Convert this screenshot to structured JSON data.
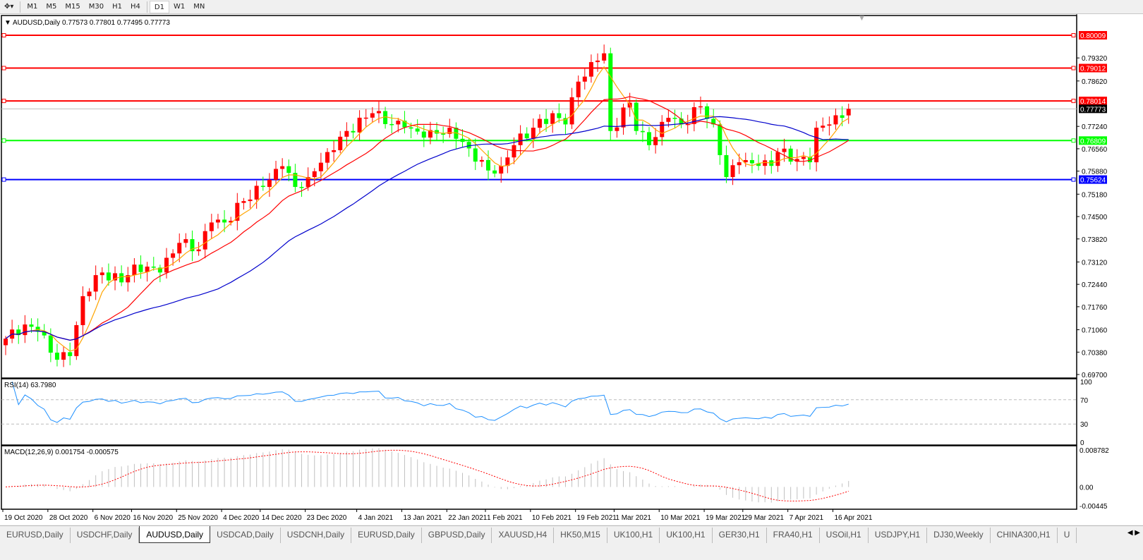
{
  "toolbar": {
    "timeframes": [
      {
        "label": "M1"
      },
      {
        "label": "M5"
      },
      {
        "label": "M15"
      },
      {
        "label": "M30"
      },
      {
        "label": "H1"
      },
      {
        "label": "H4"
      },
      {
        "label": "D1",
        "active": true
      },
      {
        "label": "W1"
      },
      {
        "label": "MN"
      }
    ]
  },
  "chart": {
    "header": "AUDUSD,Daily  0.77573 0.77801 0.77495 0.77773",
    "current_price": "0.77773",
    "colors": {
      "bull": "#ff0000",
      "bear": "#00ff00",
      "ma_fast": "#ffa500",
      "ma_mid": "#ff0000",
      "ma_slow": "#0000cc",
      "rsi": "#1e90ff",
      "macd_hist": "#c0c0c0",
      "macd_signal": "#ff0000",
      "bid_line": "#c0c0c0"
    },
    "price_axis": [
      "0.79320",
      "0.78620",
      "0.77240",
      "0.76560",
      "0.75880",
      "0.75180",
      "0.74500",
      "0.73820",
      "0.73120",
      "0.72440",
      "0.71760",
      "0.71060",
      "0.70380",
      "0.69700"
    ],
    "price_range": [
      0.697,
      0.80009
    ],
    "levels": [
      {
        "price": "0.80009",
        "color": "#ff0000"
      },
      {
        "price": "0.79012",
        "color": "#ff0000"
      },
      {
        "price": "0.78014",
        "color": "#ff0000"
      },
      {
        "price": "0.76809",
        "color": "#00ff00"
      },
      {
        "price": "0.75624",
        "color": "#0000ff"
      }
    ],
    "date_labels": [
      "19 Oct 2020",
      "28 Oct 2020",
      "6 Nov 2020",
      "16 Nov 2020",
      "25 Nov 2020",
      "4 Dec 2020",
      "14 Dec 2020",
      "23 Dec 2020",
      "4 Jan 2021",
      "13 Jan 2021",
      "22 Jan 2021",
      "1 Feb 2021",
      "10 Feb 2021",
      "19 Feb 2021",
      "1 Mar 2021",
      "10 Mar 2021",
      "19 Mar 2021",
      "29 Mar 2021",
      "7 Apr 2021",
      "16 Apr 2021"
    ]
  },
  "rsi": {
    "label": "RSI(14) 63.7980",
    "axis": [
      "100",
      "70",
      "30",
      "0"
    ],
    "levels": [
      70,
      30
    ]
  },
  "macd": {
    "label": "MACD(12,26,9) 0.001754 -0.000575",
    "axis": [
      "0.008782",
      "0.00",
      "-0.00445"
    ],
    "range": [
      -0.00445,
      0.008782
    ]
  },
  "chart_data": {
    "type": "candlestick",
    "symbol": "AUDUSD",
    "timeframe": "Daily",
    "last_ohlc": {
      "open": 0.77573,
      "high": 0.77801,
      "low": 0.77495,
      "close": 0.77773
    },
    "approx_close_pivots": [
      [
        "2020-10-19",
        0.7079
      ],
      [
        "2020-10-22",
        0.7122
      ],
      [
        "2020-10-26",
        0.71
      ],
      [
        "2020-10-29",
        0.7015
      ],
      [
        "2020-11-02",
        0.7026
      ],
      [
        "2020-11-04",
        0.7208
      ],
      [
        "2020-11-06",
        0.7272
      ],
      [
        "2020-11-09",
        0.728
      ],
      [
        "2020-11-12",
        0.725
      ],
      [
        "2020-11-16",
        0.7304
      ],
      [
        "2020-11-20",
        0.728
      ],
      [
        "2020-11-25",
        0.737
      ],
      [
        "2020-11-30",
        0.735
      ],
      [
        "2020-12-02",
        0.7432
      ],
      [
        "2020-12-04",
        0.7432
      ],
      [
        "2020-12-09",
        0.7497
      ],
      [
        "2020-12-14",
        0.754
      ],
      [
        "2020-12-17",
        0.7603
      ],
      [
        "2020-12-21",
        0.754
      ],
      [
        "2020-12-23",
        0.757
      ],
      [
        "2020-12-28",
        0.7646
      ],
      [
        "2020-12-31",
        0.771
      ],
      [
        "2021-01-06",
        0.7764
      ],
      [
        "2021-01-11",
        0.773
      ],
      [
        "2021-01-13",
        0.7721
      ],
      [
        "2021-01-18",
        0.769
      ],
      [
        "2021-01-22",
        0.772
      ],
      [
        "2021-01-27",
        0.7657
      ],
      [
        "2021-02-01",
        0.759
      ],
      [
        "2021-02-03",
        0.7604
      ],
      [
        "2021-02-05",
        0.7667
      ],
      [
        "2021-02-10",
        0.772
      ],
      [
        "2021-02-15",
        0.7764
      ],
      [
        "2021-02-17",
        0.773
      ],
      [
        "2021-02-19",
        0.786
      ],
      [
        "2021-02-24",
        0.7924
      ],
      [
        "2021-02-25",
        0.7946
      ],
      [
        "2021-02-26",
        0.771
      ],
      [
        "2021-03-03",
        0.7796
      ],
      [
        "2021-03-04",
        0.771
      ],
      [
        "2021-03-08",
        0.7667
      ],
      [
        "2021-03-11",
        0.775
      ],
      [
        "2021-03-15",
        0.773
      ],
      [
        "2021-03-18",
        0.7785
      ],
      [
        "2021-03-22",
        0.773
      ],
      [
        "2021-03-24",
        0.757
      ],
      [
        "2021-03-26",
        0.7615
      ],
      [
        "2021-03-31",
        0.7604
      ],
      [
        "2021-04-02",
        0.7604
      ],
      [
        "2021-04-05",
        0.7646
      ],
      [
        "2021-04-08",
        0.7625
      ],
      [
        "2021-04-12",
        0.7615
      ],
      [
        "2021-04-13",
        0.772
      ],
      [
        "2021-04-15",
        0.773
      ],
      [
        "2021-04-19",
        0.775
      ],
      [
        "2021-04-20",
        0.77773
      ]
    ],
    "moving_averages": [
      {
        "color": "#ffa500"
      },
      {
        "color": "#ff0000"
      },
      {
        "color": "#0000cc"
      }
    ],
    "grid": false
  },
  "tabs": [
    {
      "label": "EURUSD,Daily"
    },
    {
      "label": "USDCHF,Daily"
    },
    {
      "label": "AUDUSD,Daily",
      "active": true
    },
    {
      "label": "USDCAD,Daily"
    },
    {
      "label": "USDCNH,Daily"
    },
    {
      "label": "EURUSD,Daily"
    },
    {
      "label": "GBPUSD,Daily"
    },
    {
      "label": "XAUUSD,H4"
    },
    {
      "label": "HK50,M15"
    },
    {
      "label": "UK100,H1"
    },
    {
      "label": "UK100,H1"
    },
    {
      "label": "GER30,H1"
    },
    {
      "label": "FRA40,H1"
    },
    {
      "label": "USOil,H1"
    },
    {
      "label": "USDJPY,H1"
    },
    {
      "label": "DJ30,Weekly"
    },
    {
      "label": "CHINA300,H1"
    },
    {
      "label": "U"
    }
  ]
}
